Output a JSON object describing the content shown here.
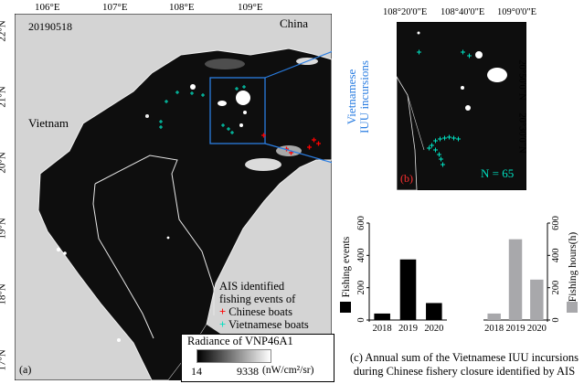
{
  "panel_a": {
    "date": "20190518",
    "lon_ticks": [
      "106°E",
      "107°E",
      "108°E",
      "109°E"
    ],
    "lat_ticks": [
      "22°N",
      "21°N",
      "20°N",
      "19°N",
      "18°N",
      "17°N"
    ],
    "country_china": "China",
    "country_vietnam": "Vietnam",
    "panel_label": "(a)",
    "legend": {
      "title_line1": "AIS identified",
      "title_line2": "fishing events of",
      "chinese": "Chinese boats",
      "vietnamese": "Vietnamese boats",
      "chinese_marker": "+",
      "vietnamese_marker": "+",
      "chinese_color": "#ff0000",
      "vietnamese_color": "#00e0c0"
    },
    "colorbar": {
      "title": "Radiance of VNP46A1",
      "min": "14",
      "max": "9338",
      "unit": "(nW/cm²/sr)"
    }
  },
  "panel_b": {
    "lon_ticks": [
      "108°20'0\"E",
      "108°40'0\"E",
      "109°0'0\"E"
    ],
    "lat_ticks": [
      "20°50'0\"N",
      "20°30'0\"N"
    ],
    "side_label_line1": "Vietnamese",
    "side_label_line2": "IUU incursions",
    "panel_label": "(b)",
    "count": "N = 65",
    "accent_color": "#2a7de1"
  },
  "panel_c": {
    "caption_line1": "(c) Annual sum of the Vietnamese IUU incursions",
    "caption_line2": "during Chinese fishery closure identified by AIS"
  },
  "chart_data": [
    {
      "type": "bar",
      "categories": [
        "2018",
        "2019",
        "2020"
      ],
      "values": [
        40,
        375,
        105
      ],
      "ylabel": "Fishing events",
      "ylim": [
        0,
        600
      ],
      "yticks": [
        "0",
        "200",
        "400",
        "600"
      ],
      "color": "#000000"
    },
    {
      "type": "bar",
      "categories": [
        "2018",
        "2019",
        "2020"
      ],
      "values": [
        40,
        500,
        250
      ],
      "ylabel": "Fishing hours(h)",
      "ylim": [
        0,
        600
      ],
      "yticks": [
        "0",
        "200",
        "400",
        "600"
      ],
      "color": "#a8a8ab"
    }
  ]
}
